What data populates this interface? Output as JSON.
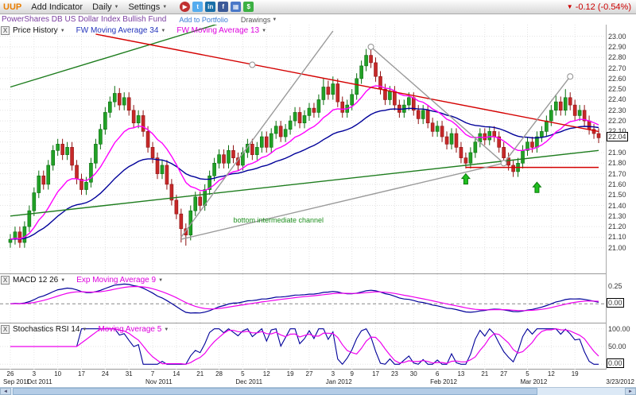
{
  "toolbar": {
    "symbol": "UUP",
    "add_indicator": "Add Indicator",
    "timeframe": "Daily",
    "settings": "Settings",
    "change": "-0.12 (-0.54%)",
    "social_icons": [
      {
        "name": "video",
        "glyph": "▶",
        "bg": "#c03030"
      },
      {
        "name": "twitter",
        "glyph": "t",
        "bg": "#55acee"
      },
      {
        "name": "linkedin",
        "glyph": "in",
        "bg": "#1a6fa8"
      },
      {
        "name": "facebook",
        "glyph": "f",
        "bg": "#3b5998"
      },
      {
        "name": "chart-share",
        "glyph": "▦",
        "bg": "#4a78c8"
      },
      {
        "name": "stocktwits",
        "glyph": "$",
        "bg": "#3cb043"
      }
    ]
  },
  "subheader": {
    "fund_name": "PowerShares DB US Dollar Index Bullish Fund",
    "add_to_portfolio": "Add to Portfolio",
    "drawings": "Drawings"
  },
  "panel_close_label": "X",
  "main_chart": {
    "legend": [
      {
        "label": "Price History"
      },
      {
        "label": "FW Moving Average 34"
      },
      {
        "label": "FW Moving Average 13"
      }
    ],
    "price_axis": {
      "labels": [
        "23.00",
        "22.90",
        "22.80",
        "22.70",
        "22.60",
        "22.50",
        "22.40",
        "22.30",
        "22.20",
        "22.10",
        "21.90",
        "21.80",
        "21.70",
        "21.60",
        "21.50",
        "21.40",
        "21.30",
        "21.20",
        "21.10",
        "21.00"
      ],
      "current": "22.04"
    }
  },
  "macd_panel": {
    "title": "MACD 12 26",
    "overlay": "Exp Moving Average 9",
    "axis_labels": [
      "0.25"
    ],
    "current": "0.00"
  },
  "stoch_panel": {
    "title": "Stochastics RSI 14",
    "overlay": "Moving Average 5",
    "axis_labels": [
      "100.00",
      "50.00"
    ],
    "current": "0.00"
  },
  "date_axis": {
    "end_label": "3/23/2012",
    "ticks": [
      {
        "i": 0,
        "label": "26",
        "month": "Sep 2011"
      },
      {
        "i": 5,
        "label": "3",
        "month": "Oct 2011"
      },
      {
        "i": 10,
        "label": "10"
      },
      {
        "i": 15,
        "label": "17"
      },
      {
        "i": 20,
        "label": "24"
      },
      {
        "i": 25,
        "label": "31"
      },
      {
        "i": 30,
        "label": "7",
        "month": "Nov 2011"
      },
      {
        "i": 35,
        "label": "14"
      },
      {
        "i": 40,
        "label": "21"
      },
      {
        "i": 44,
        "label": "28"
      },
      {
        "i": 49,
        "label": "5",
        "month": "Dec 2011"
      },
      {
        "i": 54,
        "label": "12"
      },
      {
        "i": 59,
        "label": "19"
      },
      {
        "i": 63,
        "label": "27"
      },
      {
        "i": 68,
        "label": "3",
        "month": "Jan 2012"
      },
      {
        "i": 72,
        "label": "9"
      },
      {
        "i": 77,
        "label": "17"
      },
      {
        "i": 81,
        "label": "23"
      },
      {
        "i": 85,
        "label": "30"
      },
      {
        "i": 90,
        "label": "6",
        "month": "Feb 2012"
      },
      {
        "i": 95,
        "label": "13"
      },
      {
        "i": 100,
        "label": "21"
      },
      {
        "i": 104,
        "label": "27"
      },
      {
        "i": 109,
        "label": "5",
        "month": "Mar 2012"
      },
      {
        "i": 114,
        "label": "12"
      },
      {
        "i": 119,
        "label": "19"
      }
    ]
  },
  "chart_data": {
    "type": "candlestick",
    "symbol": "UUP",
    "title": "PowerShares DB US Dollar Index Bullish Fund",
    "ylim": [
      21.0,
      23.0
    ],
    "y_step": 0.1,
    "last_price": 22.04,
    "colors": {
      "up": "#21a126",
      "up_stroke": "#0b6e10",
      "down": "#c62828",
      "down_stroke": "#8e1313"
    },
    "overlays": [
      {
        "name": "FW Moving Average 34",
        "period": 34,
        "color": "#000099"
      },
      {
        "name": "FW Moving Average 13",
        "period": 13,
        "color": "#ff00ff"
      }
    ],
    "indicators": [
      {
        "panel": "macd",
        "name": "MACD 12 26",
        "fast": 12,
        "slow": 26,
        "signal": 9,
        "colors": {
          "macd": "#000099",
          "signal": "#ee00ee"
        }
      },
      {
        "panel": "stochrsi",
        "name": "Stochastics RSI 14",
        "period": 14,
        "ma": 5,
        "colors": {
          "line": "#000099",
          "ma": "#ee00ee"
        }
      }
    ],
    "trendlines": [
      {
        "name": "channel-bottom",
        "color": "#1e7d1e",
        "from": [
          0,
          21.3
        ],
        "to": [
          124,
          21.92
        ]
      },
      {
        "name": "channel-top",
        "color": "#1e7d1e",
        "from": [
          0,
          22.52
        ],
        "to": [
          44,
          23.12
        ]
      },
      {
        "name": "resistance-downtrend",
        "color": "#d40000",
        "from": [
          18,
          23.02
        ],
        "to": [
          124,
          22.1
        ]
      },
      {
        "name": "support-horizontal",
        "color": "#d40000",
        "from": [
          96,
          21.76
        ],
        "to": [
          124,
          21.76
        ]
      },
      {
        "name": "gray-steep-uptrend",
        "color": "#9a9a9a",
        "from": [
          36,
          21.1
        ],
        "to": [
          68,
          23.05
        ]
      },
      {
        "name": "gray-shallow-uptrend",
        "color": "#9a9a9a",
        "from": [
          36,
          21.08
        ],
        "to": [
          104,
          21.8
        ]
      },
      {
        "name": "gray-peak-decline",
        "color": "#9a9a9a",
        "from": [
          76,
          22.9
        ],
        "to": [
          104,
          21.8
        ]
      },
      {
        "name": "gray-rally",
        "color": "#9a9a9a",
        "from": [
          104,
          21.8
        ],
        "to": [
          118,
          22.62
        ]
      }
    ],
    "markers": [
      [
        51,
        22.73
      ],
      [
        76,
        22.9
      ],
      [
        104,
        21.8
      ],
      [
        118,
        22.62
      ]
    ],
    "arrows": [
      [
        96,
        21.7
      ],
      [
        111,
        21.62
      ]
    ],
    "annotation": {
      "i": 47,
      "p": 21.24,
      "text": "bottom intermediate channel",
      "color": "#1f8f1f"
    },
    "candles": [
      [
        21.05,
        21.13,
        21.0,
        21.08
      ],
      [
        21.08,
        21.2,
        21.03,
        21.15
      ],
      [
        21.15,
        21.2,
        21.0,
        21.05
      ],
      [
        21.05,
        21.25,
        21.0,
        21.2
      ],
      [
        21.2,
        21.4,
        21.15,
        21.35
      ],
      [
        21.35,
        21.57,
        21.3,
        21.52
      ],
      [
        21.52,
        21.73,
        21.47,
        21.68
      ],
      [
        21.68,
        21.73,
        21.55,
        21.6
      ],
      [
        21.6,
        21.83,
        21.55,
        21.78
      ],
      [
        21.78,
        21.97,
        21.73,
        21.92
      ],
      [
        21.92,
        22.03,
        21.87,
        21.98
      ],
      [
        21.98,
        22.03,
        21.83,
        21.88
      ],
      [
        21.88,
        22.0,
        21.83,
        21.95
      ],
      [
        21.95,
        22.0,
        21.73,
        21.78
      ],
      [
        21.78,
        21.83,
        21.6,
        21.65
      ],
      [
        21.65,
        21.7,
        21.5,
        21.55
      ],
      [
        21.55,
        21.67,
        21.5,
        21.62
      ],
      [
        21.62,
        21.85,
        21.57,
        21.8
      ],
      [
        21.8,
        22.03,
        21.75,
        21.98
      ],
      [
        21.98,
        22.17,
        21.93,
        22.12
      ],
      [
        22.12,
        22.33,
        22.07,
        22.28
      ],
      [
        22.28,
        22.43,
        22.23,
        22.38
      ],
      [
        22.38,
        22.53,
        22.33,
        22.46
      ],
      [
        22.46,
        22.51,
        22.3,
        22.35
      ],
      [
        22.35,
        22.47,
        22.3,
        22.42
      ],
      [
        22.42,
        22.47,
        22.25,
        22.3
      ],
      [
        22.3,
        22.35,
        22.13,
        22.18
      ],
      [
        22.18,
        22.3,
        22.13,
        22.25
      ],
      [
        22.25,
        22.3,
        22.05,
        22.1
      ],
      [
        22.1,
        22.15,
        21.9,
        21.95
      ],
      [
        21.95,
        22.0,
        21.8,
        21.85
      ],
      [
        21.85,
        21.9,
        21.65,
        21.7
      ],
      [
        21.7,
        21.83,
        21.65,
        21.78
      ],
      [
        21.78,
        21.83,
        21.55,
        21.6
      ],
      [
        21.6,
        21.65,
        21.4,
        21.45
      ],
      [
        21.45,
        21.5,
        21.27,
        21.32
      ],
      [
        21.32,
        21.37,
        21.05,
        21.18
      ],
      [
        21.18,
        21.23,
        21.02,
        21.12
      ],
      [
        21.12,
        21.4,
        21.07,
        21.35
      ],
      [
        21.35,
        21.53,
        21.3,
        21.48
      ],
      [
        21.48,
        21.53,
        21.35,
        21.4
      ],
      [
        21.4,
        21.6,
        21.35,
        21.55
      ],
      [
        21.55,
        21.73,
        21.5,
        21.68
      ],
      [
        21.68,
        21.85,
        21.63,
        21.8
      ],
      [
        21.8,
        21.93,
        21.75,
        21.88
      ],
      [
        21.88,
        21.93,
        21.75,
        21.8
      ],
      [
        21.8,
        21.97,
        21.75,
        21.92
      ],
      [
        21.92,
        21.97,
        21.8,
        21.85
      ],
      [
        21.85,
        21.9,
        21.73,
        21.78
      ],
      [
        21.78,
        21.95,
        21.73,
        21.9
      ],
      [
        21.9,
        22.03,
        21.85,
        21.98
      ],
      [
        21.98,
        22.03,
        21.83,
        21.88
      ],
      [
        21.88,
        22.0,
        21.83,
        21.95
      ],
      [
        21.95,
        22.1,
        21.9,
        22.05
      ],
      [
        22.05,
        22.1,
        21.9,
        21.95
      ],
      [
        21.95,
        22.13,
        21.9,
        22.08
      ],
      [
        22.08,
        22.2,
        22.03,
        22.15
      ],
      [
        22.15,
        22.2,
        22.0,
        22.05
      ],
      [
        22.05,
        22.17,
        22.0,
        22.12
      ],
      [
        22.12,
        22.25,
        22.07,
        22.2
      ],
      [
        22.2,
        22.33,
        22.15,
        22.28
      ],
      [
        22.28,
        22.33,
        22.13,
        22.18
      ],
      [
        22.18,
        22.3,
        22.13,
        22.25
      ],
      [
        22.25,
        22.37,
        22.2,
        22.32
      ],
      [
        22.32,
        22.37,
        22.23,
        22.28
      ],
      [
        22.28,
        22.45,
        22.23,
        22.4
      ],
      [
        22.4,
        22.6,
        22.35,
        22.52
      ],
      [
        22.52,
        22.58,
        22.4,
        22.45
      ],
      [
        22.45,
        22.62,
        22.4,
        22.55
      ],
      [
        22.55,
        22.6,
        22.33,
        22.38
      ],
      [
        22.38,
        22.43,
        22.23,
        22.28
      ],
      [
        22.28,
        22.4,
        22.23,
        22.35
      ],
      [
        22.35,
        22.5,
        22.3,
        22.45
      ],
      [
        22.45,
        22.65,
        22.4,
        22.6
      ],
      [
        22.6,
        22.77,
        22.55,
        22.72
      ],
      [
        22.72,
        22.88,
        22.67,
        22.82
      ],
      [
        22.82,
        22.87,
        22.7,
        22.75
      ],
      [
        22.75,
        22.8,
        22.57,
        22.62
      ],
      [
        22.62,
        22.67,
        22.45,
        22.5
      ],
      [
        22.5,
        22.55,
        22.35,
        22.4
      ],
      [
        22.4,
        22.53,
        22.35,
        22.48
      ],
      [
        22.48,
        22.53,
        22.3,
        22.35
      ],
      [
        22.35,
        22.4,
        22.23,
        22.28
      ],
      [
        22.28,
        22.4,
        22.23,
        22.35
      ],
      [
        22.35,
        22.47,
        22.3,
        22.42
      ],
      [
        22.42,
        22.47,
        22.25,
        22.3
      ],
      [
        22.3,
        22.35,
        22.17,
        22.22
      ],
      [
        22.22,
        22.35,
        22.17,
        22.3
      ],
      [
        22.3,
        22.35,
        22.13,
        22.18
      ],
      [
        22.18,
        22.23,
        22.05,
        22.1
      ],
      [
        22.1,
        22.2,
        22.05,
        22.15
      ],
      [
        22.15,
        22.2,
        22.0,
        22.05
      ],
      [
        22.05,
        22.1,
        21.93,
        21.98
      ],
      [
        21.98,
        22.13,
        21.93,
        22.08
      ],
      [
        22.08,
        22.13,
        21.9,
        21.95
      ],
      [
        21.95,
        22.0,
        21.8,
        21.85
      ],
      [
        21.85,
        21.9,
        21.75,
        21.8
      ],
      [
        21.8,
        21.95,
        21.75,
        21.9
      ],
      [
        21.9,
        22.05,
        21.85,
        22.0
      ],
      [
        22.0,
        22.13,
        21.95,
        22.08
      ],
      [
        22.08,
        22.13,
        21.97,
        22.02
      ],
      [
        22.02,
        22.15,
        21.97,
        22.1
      ],
      [
        22.1,
        22.15,
        22.0,
        22.05
      ],
      [
        22.05,
        22.1,
        21.9,
        21.95
      ],
      [
        21.95,
        22.0,
        21.8,
        21.85
      ],
      [
        21.85,
        21.9,
        21.73,
        21.78
      ],
      [
        21.78,
        21.83,
        21.67,
        21.72
      ],
      [
        21.72,
        21.85,
        21.67,
        21.8
      ],
      [
        21.8,
        21.97,
        21.75,
        21.92
      ],
      [
        21.92,
        22.05,
        21.87,
        22.0
      ],
      [
        22.0,
        22.05,
        21.9,
        21.95
      ],
      [
        21.95,
        22.1,
        21.9,
        22.05
      ],
      [
        22.05,
        22.15,
        22.0,
        22.1
      ],
      [
        22.1,
        22.25,
        22.05,
        22.2
      ],
      [
        22.2,
        22.35,
        22.15,
        22.3
      ],
      [
        22.3,
        22.45,
        22.25,
        22.38
      ],
      [
        22.38,
        22.43,
        22.25,
        22.3
      ],
      [
        22.3,
        22.5,
        22.25,
        22.42
      ],
      [
        22.42,
        22.47,
        22.3,
        22.35
      ],
      [
        22.35,
        22.4,
        22.2,
        22.25
      ],
      [
        22.25,
        22.35,
        22.2,
        22.3
      ],
      [
        22.3,
        22.35,
        22.15,
        22.2
      ],
      [
        22.2,
        22.25,
        22.07,
        22.12
      ],
      [
        22.12,
        22.17,
        22.03,
        22.08
      ],
      [
        22.08,
        22.13,
        21.99,
        22.04
      ]
    ]
  }
}
